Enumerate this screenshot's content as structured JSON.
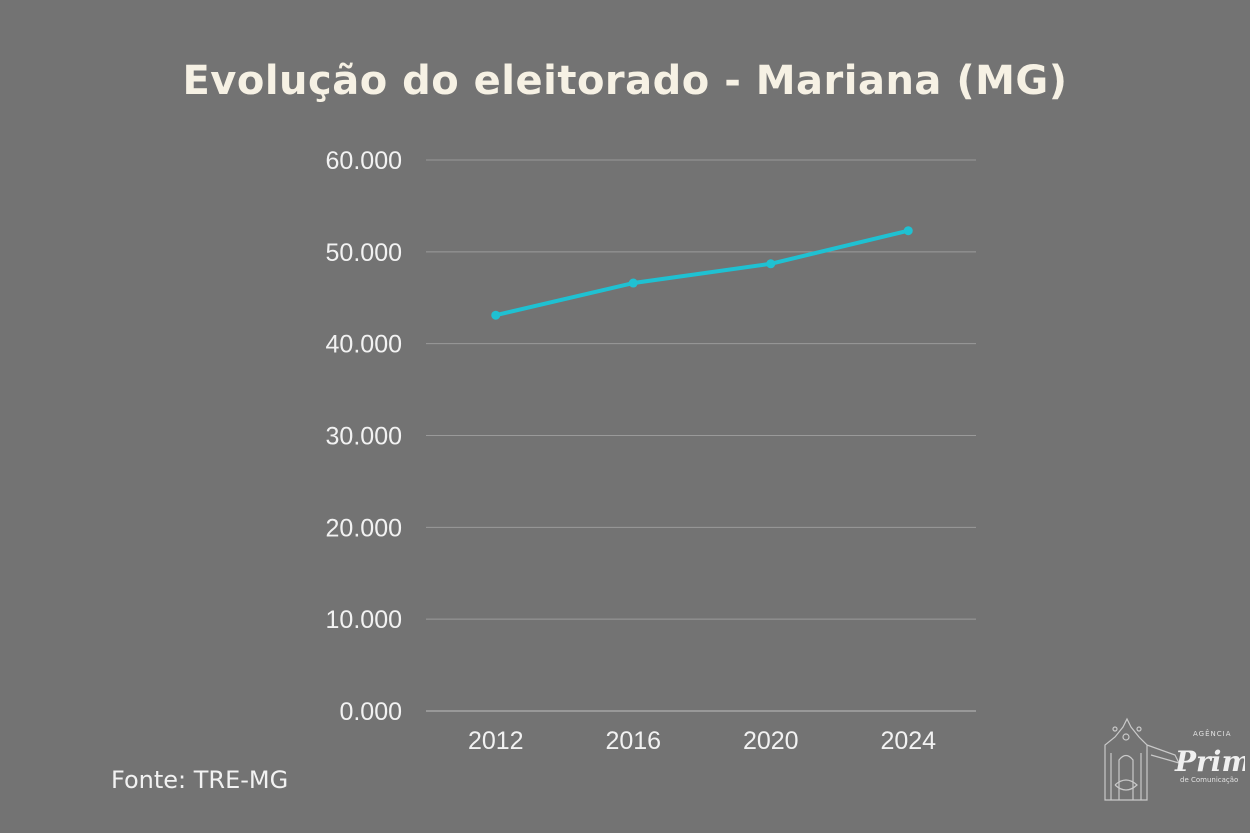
{
  "chart_data": {
    "type": "line",
    "title": "Evolução do eleitorado - Mariana (MG)",
    "categories": [
      "2012",
      "2016",
      "2020",
      "2024"
    ],
    "values": [
      43100,
      46600,
      48700,
      52300
    ],
    "ylim": [
      0,
      60000
    ],
    "yticks": [
      0,
      10000,
      20000,
      30000,
      40000,
      50000,
      60000
    ],
    "ytick_labels": [
      "0.000",
      "10.000",
      "20.000",
      "30.000",
      "40.000",
      "50.000",
      "60.000"
    ],
    "xlabel": "",
    "ylabel": "",
    "grid": true,
    "line_color": "#1fc1d2",
    "background_color": "#737373"
  },
  "source": "Fonte: TRE-MG",
  "logo": {
    "top": "AGÊNCIA",
    "name": "Primaz",
    "bottom": "de Comunicação"
  }
}
